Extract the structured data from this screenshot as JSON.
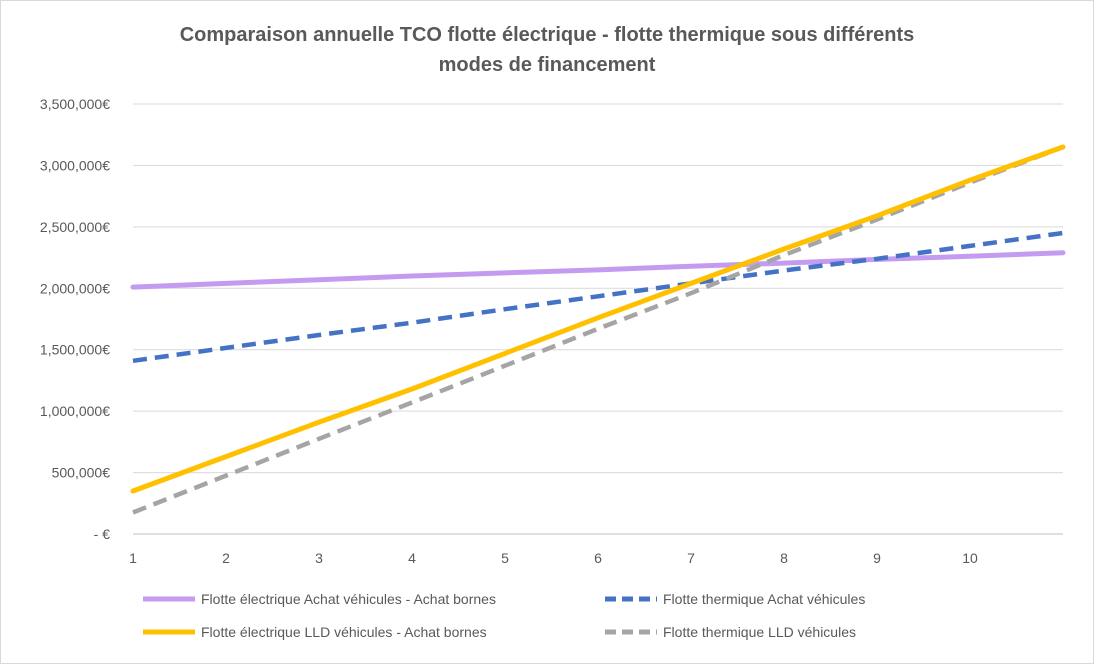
{
  "chart_data": {
    "type": "line",
    "title_lines": [
      "Comparaison  annuelle TCO flotte électrique - flotte thermique sous différents",
      "modes de financement"
    ],
    "categories": [
      1,
      2,
      3,
      4,
      5,
      6,
      7,
      8,
      9,
      10
    ],
    "x_tick_labels": [
      "1",
      "2",
      "3",
      "4",
      "5",
      "6",
      "7",
      "8",
      "9",
      "10"
    ],
    "xlim": [
      1,
      11
    ],
    "ylim": [
      0,
      3500000
    ],
    "y_tick_labels": [
      "-   €",
      "500,000€",
      "1,000,000€",
      "1,500,000€",
      "2,000,000€",
      "2,500,000€",
      "3,000,000€",
      "3,500,000€"
    ],
    "grid": true,
    "legend_position": "bottom",
    "series": [
      {
        "name": "Flotte électrique Achat véhicules - Achat bornes",
        "color": "#c39bf0",
        "style": "solid",
        "x": [
          1,
          2,
          3,
          4,
          5,
          6,
          7,
          8,
          9,
          10,
          11
        ],
        "values": [
          2010000,
          2040000,
          2070000,
          2100000,
          2125000,
          2150000,
          2180000,
          2205000,
          2235000,
          2260000,
          2290000
        ]
      },
      {
        "name": "Flotte thermique Achat véhicules",
        "color": "#4472c4",
        "style": "dashed",
        "x": [
          1,
          2,
          3,
          4,
          5,
          6,
          7,
          8,
          9,
          10,
          11
        ],
        "values": [
          1410000,
          1515000,
          1620000,
          1720000,
          1830000,
          1935000,
          2040000,
          2145000,
          2240000,
          2345000,
          2450000
        ]
      },
      {
        "name": "Flotte électrique LLD véhicules - Achat bornes",
        "color": "#ffc000",
        "style": "solid",
        "x": [
          1,
          2,
          3,
          4,
          5,
          6,
          7,
          8,
          9,
          10,
          11
        ],
        "values": [
          350000,
          630000,
          910000,
          1180000,
          1470000,
          1760000,
          2040000,
          2320000,
          2590000,
          2880000,
          3150000
        ]
      },
      {
        "name": "Flotte thermique LLD véhicules",
        "color": "#a5a5a5",
        "style": "dashed",
        "x": [
          1,
          2,
          3,
          4,
          5,
          6,
          7,
          8,
          9,
          10,
          11
        ],
        "values": [
          175000,
          475000,
          775000,
          1070000,
          1370000,
          1670000,
          1960000,
          2270000,
          2560000,
          2860000,
          3150000
        ]
      }
    ]
  }
}
